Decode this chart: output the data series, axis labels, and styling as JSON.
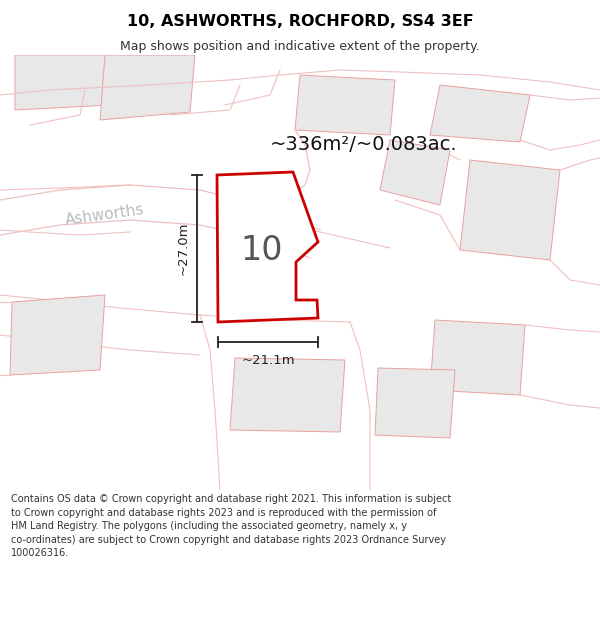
{
  "title": "10, ASHWORTHS, ROCHFORD, SS4 3EF",
  "subtitle": "Map shows position and indicative extent of the property.",
  "area_label": "~336m²/~0.083ac.",
  "dim_h": "~27.0m",
  "dim_w": "~21.1m",
  "property_label": "10",
  "street_label": "Ashworths",
  "copyright_text": "Contains OS data © Crown copyright and database right 2021. This information is subject\nto Crown copyright and database rights 2023 and is reproduced with the permission of\nHM Land Registry. The polygons (including the associated geometry, namely x, y\nco-ordinates) are subject to Crown copyright and database rights 2023 Ordnance Survey\n100026316.",
  "bg_color": "#f7f7f7",
  "map_bg": "#f7f7f5",
  "title_color": "#000000",
  "property_poly_color": "#cc0000",
  "building_fill": "#e8e8e8",
  "building_edge": "#e8a0a0",
  "road_outline": "#f0c0c0",
  "text_color": "#000000",
  "street_color": "#bbbbbb",
  "dim_color": "#333333"
}
